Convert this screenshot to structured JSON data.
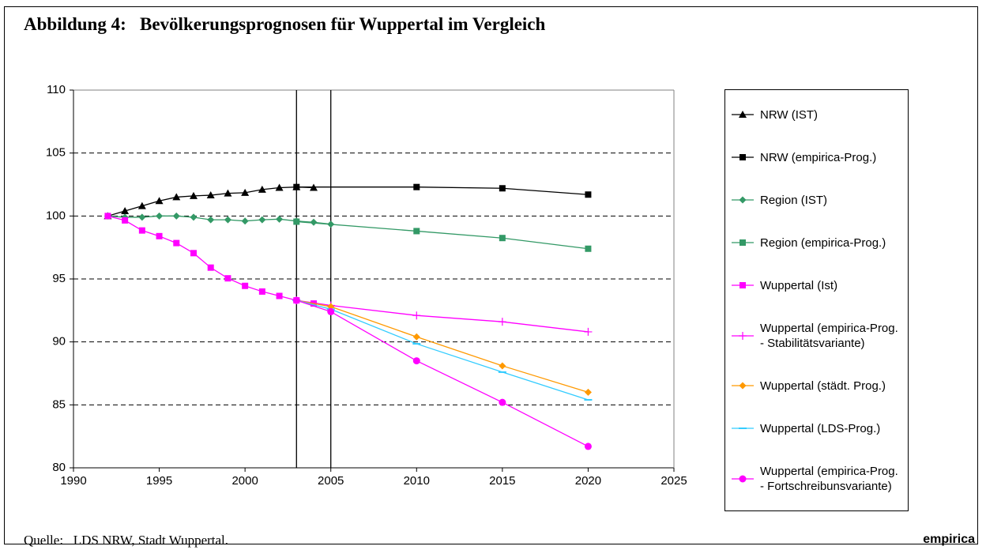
{
  "chart_data": {
    "type": "line",
    "title": "Abbildung 4:   Bevölkerungsprognosen für Wuppertal im Vergleich",
    "source": "Quelle:   LDS NRW, Stadt Wuppertal.",
    "brand": "empirica",
    "xlim": [
      1990,
      2025
    ],
    "xticks": [
      1990,
      1995,
      2000,
      2005,
      2010,
      2015,
      2020,
      2025
    ],
    "ylim": [
      80,
      110
    ],
    "yticks": [
      80,
      85,
      90,
      95,
      100,
      105,
      110
    ],
    "grid": true,
    "vlines": [
      2003,
      2005
    ],
    "series": [
      {
        "name": "NRW (IST)",
        "color": "#000000",
        "marker": "triangle",
        "x": [
          1992,
          1993,
          1994,
          1995,
          1996,
          1997,
          1998,
          1999,
          2000,
          2001,
          2002,
          2003,
          2004
        ],
        "values": [
          100,
          100.4,
          100.8,
          101.2,
          101.5,
          101.6,
          101.65,
          101.8,
          101.85,
          102.1,
          102.25,
          102.3,
          102.25
        ]
      },
      {
        "name": "NRW (empirica-Prog.)",
        "color": "#000000",
        "marker": "square",
        "x": [
          2003,
          2010,
          2015,
          2020
        ],
        "values": [
          102.3,
          102.3,
          102.2,
          101.7
        ]
      },
      {
        "name": "Region (IST)",
        "color": "#339966",
        "marker": "diamond",
        "x": [
          1992,
          1993,
          1994,
          1995,
          1996,
          1997,
          1998,
          1999,
          2000,
          2001,
          2002,
          2003,
          2004,
          2005
        ],
        "values": [
          100,
          99.9,
          99.9,
          100,
          100,
          99.9,
          99.7,
          99.7,
          99.6,
          99.7,
          99.75,
          99.6,
          99.5,
          99.35
        ]
      },
      {
        "name": "Region (empirica-Prog.)",
        "color": "#339966",
        "marker": "square",
        "x": [
          2003,
          2010,
          2015,
          2020
        ],
        "values": [
          99.55,
          98.8,
          98.25,
          97.4
        ]
      },
      {
        "name": "Wuppertal (Ist)",
        "color": "#ff00ff",
        "marker": "square",
        "x": [
          1992,
          1993,
          1994,
          1995,
          1996,
          1997,
          1998,
          1999,
          2000,
          2001,
          2002,
          2003,
          2004
        ],
        "values": [
          100,
          99.65,
          98.85,
          98.4,
          97.85,
          97.05,
          95.9,
          95.05,
          94.45,
          94.0,
          93.65,
          93.3,
          93.05
        ]
      },
      {
        "name": "Wuppertal (empirica-Prog.\n- Stabilitätsvariante)",
        "color": "#ff00ff",
        "marker": "plus",
        "x": [
          2003,
          2005,
          2010,
          2015,
          2020
        ],
        "values": [
          93.3,
          92.9,
          92.1,
          91.6,
          90.8
        ]
      },
      {
        "name": "Wuppertal (städt. Prog.)",
        "color": "#ff9900",
        "marker": "diamond",
        "x": [
          2003,
          2005,
          2010,
          2015,
          2020
        ],
        "values": [
          93.3,
          92.8,
          90.4,
          88.1,
          86.0
        ]
      },
      {
        "name": "Wuppertal (LDS-Prog.)",
        "color": "#33ccff",
        "marker": "dash",
        "x": [
          2003,
          2005,
          2010,
          2015,
          2020
        ],
        "values": [
          93.3,
          92.6,
          89.85,
          87.6,
          85.4
        ]
      },
      {
        "name": "Wuppertal (empirica-Prog.\n- Fortschreibunsvariante)",
        "color": "#ff00ff",
        "marker": "circle",
        "x": [
          2003,
          2005,
          2010,
          2015,
          2020
        ],
        "values": [
          93.3,
          92.4,
          88.5,
          85.2,
          81.7
        ]
      }
    ]
  }
}
